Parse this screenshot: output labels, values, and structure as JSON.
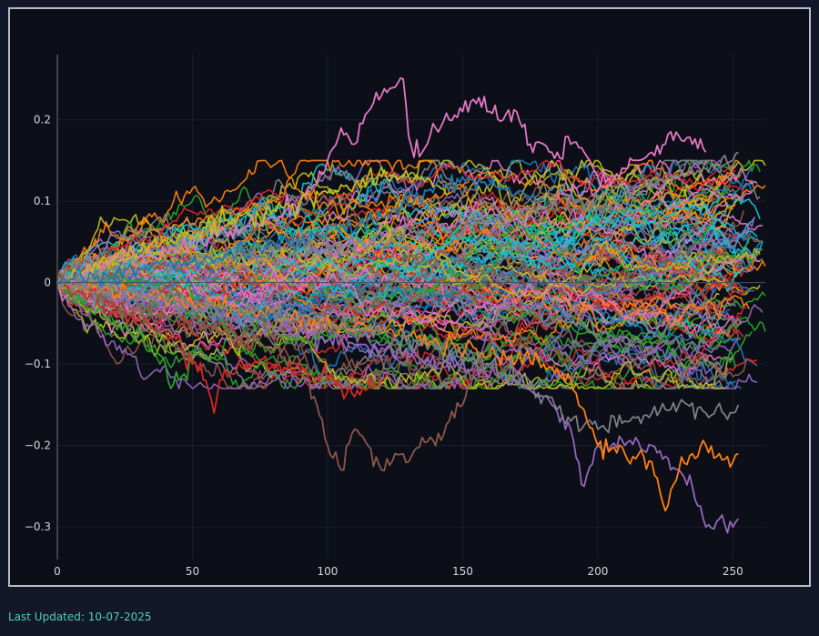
{
  "chart_data": {
    "type": "line",
    "title": "",
    "xlabel": "",
    "ylabel": "",
    "xlim": [
      0,
      262
    ],
    "ylim": [
      -0.34,
      0.28
    ],
    "x_ticks": [
      0,
      50,
      100,
      150,
      200,
      250
    ],
    "y_ticks": [
      0.2,
      0.1,
      0,
      -0.1,
      -0.2,
      -0.3
    ],
    "x_tick_labels": [
      "0",
      "50",
      "100",
      "150",
      "200",
      "250"
    ],
    "y_tick_labels": [
      "0.2",
      "0.1",
      "0",
      "−0.1",
      "−0.2",
      "−0.3"
    ],
    "grid": true,
    "legend": "none",
    "palette": [
      "#1f77b4",
      "#ff7f0e",
      "#2ca02c",
      "#d62728",
      "#9467bd",
      "#8c564b",
      "#e377c2",
      "#7f7f7f",
      "#bcbd22",
      "#17becf"
    ],
    "series_count": 120,
    "highlighted_paths": [
      {
        "color": "#e377c2",
        "x": [
          0,
          20,
          40,
          60,
          70,
          80,
          90,
          95,
          100,
          105,
          110,
          115,
          120,
          125,
          128,
          130,
          135,
          140,
          145,
          150,
          155,
          160,
          165,
          170,
          175,
          180,
          185,
          190,
          195,
          200,
          205,
          210,
          215,
          220,
          225,
          230,
          235,
          240
        ],
        "y": [
          0,
          0.03,
          0.04,
          0.06,
          0.07,
          0.08,
          0.1,
          0.12,
          0.15,
          0.19,
          0.17,
          0.21,
          0.23,
          0.24,
          0.25,
          0.18,
          0.16,
          0.19,
          0.2,
          0.21,
          0.22,
          0.21,
          0.2,
          0.21,
          0.17,
          0.17,
          0.16,
          0.17,
          0.16,
          0.13,
          0.12,
          0.14,
          0.15,
          0.16,
          0.17,
          0.18,
          0.17,
          0.16
        ]
      },
      {
        "color": "#bcbd22",
        "x": [
          0,
          30,
          60,
          80,
          90,
          100,
          105,
          110,
          120,
          125,
          130,
          135,
          140,
          145
        ],
        "y": [
          0,
          0.04,
          0.07,
          0.09,
          0.1,
          0.11,
          0.12,
          0.12,
          0.13,
          0.13,
          0.13,
          0.13,
          0.12,
          0.11
        ]
      },
      {
        "color": "#8c564b",
        "x": [
          0,
          40,
          80,
          90,
          95,
          100,
          105,
          110,
          115,
          120,
          125,
          130,
          135,
          140,
          145,
          150,
          155,
          160
        ],
        "y": [
          0,
          -0.04,
          -0.08,
          -0.1,
          -0.14,
          -0.2,
          -0.23,
          -0.18,
          -0.2,
          -0.23,
          -0.21,
          -0.22,
          -0.19,
          -0.2,
          -0.17,
          -0.15,
          -0.1,
          -0.11
        ]
      },
      {
        "color": "#9467bd",
        "x": [
          0,
          60,
          120,
          170,
          180,
          190,
          195,
          200,
          205,
          210,
          220,
          230,
          235,
          240,
          245,
          250,
          252
        ],
        "y": [
          0,
          -0.04,
          -0.08,
          -0.12,
          -0.14,
          -0.18,
          -0.25,
          -0.2,
          -0.2,
          -0.2,
          -0.2,
          -0.23,
          -0.25,
          -0.3,
          -0.29,
          -0.3,
          -0.29
        ]
      },
      {
        "color": "#ff7f0e",
        "x": [
          0,
          60,
          120,
          180,
          190,
          200,
          210,
          220,
          225,
          230,
          235,
          240,
          245,
          250,
          252
        ],
        "y": [
          0,
          -0.03,
          -0.06,
          -0.1,
          -0.12,
          -0.2,
          -0.21,
          -0.22,
          -0.28,
          -0.23,
          -0.21,
          -0.2,
          -0.21,
          -0.22,
          -0.21
        ]
      },
      {
        "color": "#2ca02c",
        "x": [
          0,
          10,
          20,
          30,
          35,
          40,
          42,
          45,
          50
        ],
        "y": [
          0,
          -0.03,
          -0.05,
          -0.06,
          -0.08,
          -0.1,
          -0.13,
          -0.12,
          -0.1
        ]
      },
      {
        "color": "#d62728",
        "x": [
          0,
          20,
          40,
          50,
          55,
          58,
          60,
          70,
          80,
          90,
          100,
          110,
          115,
          120
        ],
        "y": [
          0,
          -0.03,
          -0.06,
          -0.1,
          -0.12,
          -0.16,
          -0.12,
          -0.1,
          -0.1,
          -0.11,
          -0.12,
          -0.14,
          -0.13,
          -0.12
        ]
      },
      {
        "color": "#7f7f7f",
        "x": [
          0,
          60,
          120,
          160,
          180,
          190,
          200,
          210,
          220,
          230,
          240,
          250,
          252
        ],
        "y": [
          0,
          -0.03,
          -0.06,
          -0.1,
          -0.14,
          -0.17,
          -0.18,
          -0.17,
          -0.16,
          -0.15,
          -0.16,
          -0.16,
          -0.15
        ]
      },
      {
        "color": "#7f7f7f",
        "x": [
          0,
          60,
          120,
          180,
          220,
          240,
          250,
          252
        ],
        "y": [
          0,
          0.03,
          0.05,
          0.09,
          0.12,
          0.14,
          0.15,
          0.16
        ]
      },
      {
        "color": "#1f77b4",
        "x": [
          0,
          60,
          120,
          140,
          150,
          160,
          170,
          180
        ],
        "y": [
          0,
          0.03,
          0.08,
          0.12,
          0.13,
          0.12,
          0.11,
          0.1
        ]
      }
    ]
  },
  "footer": {
    "last_updated": "Last Updated: 10-07-2025"
  }
}
